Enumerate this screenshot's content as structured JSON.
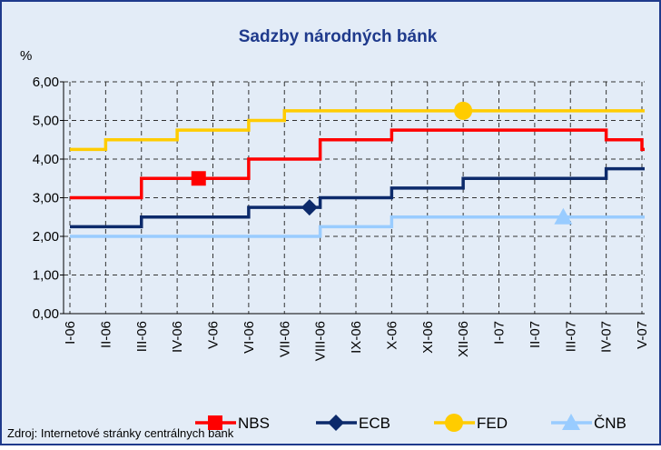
{
  "chart_data": {
    "type": "line",
    "step": true,
    "title": "Sadzby národných bánk",
    "y_axis_label": "%",
    "source": "Zdroj: Internetové stránky centrálnych bánk",
    "categories": [
      "I-06",
      "II-06",
      "III-06",
      "IV-06",
      "V-06",
      "VI-06",
      "VII-06",
      "VIII-06",
      "IX-06",
      "X-06",
      "XI-06",
      "XII-06",
      "I-07",
      "II-07",
      "III-07",
      "IV-07",
      "V-07"
    ],
    "series": [
      {
        "name": "NBS",
        "color": "#ff0000",
        "marker": "square",
        "values": [
          3.0,
          3.0,
          3.5,
          3.5,
          3.5,
          4.0,
          4.0,
          4.5,
          4.5,
          4.75,
          4.75,
          4.75,
          4.75,
          4.75,
          4.75,
          4.5,
          4.25
        ]
      },
      {
        "name": "ECB",
        "color": "#0c2a6b",
        "marker": "diamond",
        "values": [
          2.25,
          2.25,
          2.5,
          2.5,
          2.5,
          2.75,
          2.75,
          3.0,
          3.0,
          3.25,
          3.25,
          3.5,
          3.5,
          3.5,
          3.5,
          3.75,
          3.75
        ]
      },
      {
        "name": "FED",
        "color": "#ffcc00",
        "marker": "circle",
        "values": [
          4.25,
          4.5,
          4.5,
          4.75,
          4.75,
          5.0,
          5.25,
          5.25,
          5.25,
          5.25,
          5.25,
          5.25,
          5.25,
          5.25,
          5.25,
          5.25,
          5.25
        ]
      },
      {
        "name": "ČNB",
        "color": "#99ccff",
        "marker": "triangle",
        "values": [
          2.0,
          2.0,
          2.0,
          2.0,
          2.0,
          2.0,
          2.0,
          2.25,
          2.25,
          2.5,
          2.5,
          2.5,
          2.5,
          2.5,
          2.5,
          2.5,
          2.5
        ]
      }
    ],
    "ylim": [
      0,
      6
    ],
    "yticks": [
      {
        "value": 0,
        "label": "0,00"
      },
      {
        "value": 1,
        "label": "1,00"
      },
      {
        "value": 2,
        "label": "2,00"
      },
      {
        "value": 3,
        "label": "3,00"
      },
      {
        "value": 4,
        "label": "4,00"
      },
      {
        "value": 5,
        "label": "5,00"
      },
      {
        "value": 6,
        "label": "6,00"
      }
    ],
    "grid": true,
    "legend": "bottom"
  }
}
